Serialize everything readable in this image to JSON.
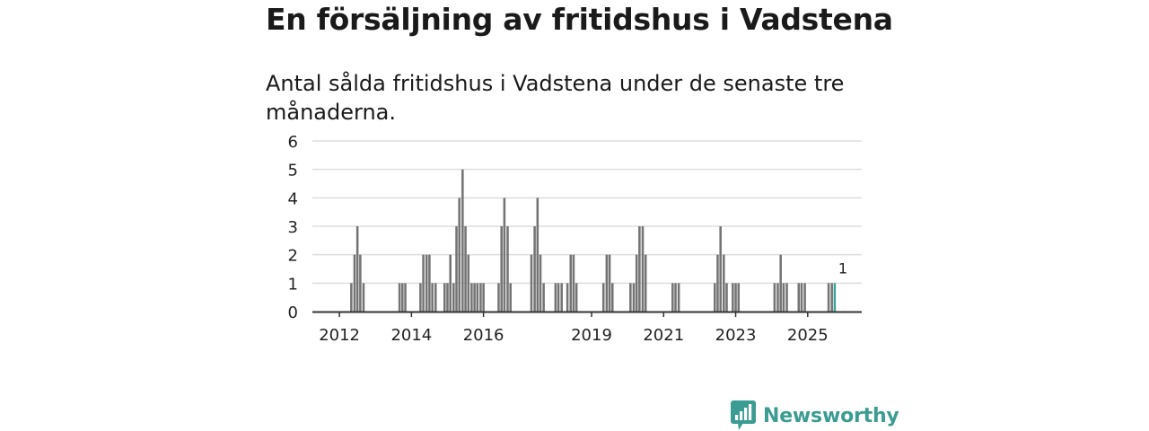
{
  "header": {
    "title": "En försäljning av fritidshus i Vadstena",
    "subtitle": "Antal sålda fritidshus i Vadstena under de senaste tre månaderna."
  },
  "brand": {
    "name": "Newsworthy",
    "icon": "newsworthy-logo-icon",
    "color": "#3a9c92"
  },
  "colors": {
    "bar": "#747474",
    "highlight": "#3aa59a",
    "grid": "#dddddd",
    "axis": "#333333",
    "text": "#222222"
  },
  "chart_data": {
    "type": "bar",
    "title": "Antal sålda fritidshus i Vadstena under de senaste tre månaderna.",
    "xlabel": "",
    "ylabel": "",
    "ylim": [
      0,
      6
    ],
    "xlim": [
      2011.5,
      2026.75
    ],
    "yticks": [
      "0",
      "1",
      "2",
      "3",
      "4",
      "5",
      "6"
    ],
    "xticks": [
      {
        "label": "2012",
        "value": 2012.25
      },
      {
        "label": "2014",
        "value": 2014.25
      },
      {
        "label": "2016",
        "value": 2016.25
      },
      {
        "label": "2019",
        "value": 2019.25
      },
      {
        "label": "2021",
        "value": 2021.25
      },
      {
        "label": "2023",
        "value": 2023.25
      },
      {
        "label": "2025",
        "value": 2025.25
      }
    ],
    "bar_width_years": 0.0833,
    "annotation": {
      "label": "1",
      "x": 2026.25
    },
    "bars": [
      {
        "x": 2012.58,
        "value": 1
      },
      {
        "x": 2012.67,
        "value": 2
      },
      {
        "x": 2012.75,
        "value": 3
      },
      {
        "x": 2012.83,
        "value": 2
      },
      {
        "x": 2012.92,
        "value": 1
      },
      {
        "x": 2013.92,
        "value": 1
      },
      {
        "x": 2014.0,
        "value": 1
      },
      {
        "x": 2014.08,
        "value": 1
      },
      {
        "x": 2014.5,
        "value": 1
      },
      {
        "x": 2014.58,
        "value": 2
      },
      {
        "x": 2014.67,
        "value": 2
      },
      {
        "x": 2014.75,
        "value": 2
      },
      {
        "x": 2014.83,
        "value": 1
      },
      {
        "x": 2014.92,
        "value": 1
      },
      {
        "x": 2015.17,
        "value": 1
      },
      {
        "x": 2015.25,
        "value": 1
      },
      {
        "x": 2015.33,
        "value": 2
      },
      {
        "x": 2015.42,
        "value": 1
      },
      {
        "x": 2015.5,
        "value": 3
      },
      {
        "x": 2015.58,
        "value": 4
      },
      {
        "x": 2015.67,
        "value": 5
      },
      {
        "x": 2015.75,
        "value": 3
      },
      {
        "x": 2015.83,
        "value": 2
      },
      {
        "x": 2015.92,
        "value": 1
      },
      {
        "x": 2016.0,
        "value": 1
      },
      {
        "x": 2016.08,
        "value": 1
      },
      {
        "x": 2016.17,
        "value": 1
      },
      {
        "x": 2016.25,
        "value": 1
      },
      {
        "x": 2016.67,
        "value": 1
      },
      {
        "x": 2016.75,
        "value": 3
      },
      {
        "x": 2016.83,
        "value": 4
      },
      {
        "x": 2016.92,
        "value": 3
      },
      {
        "x": 2017.0,
        "value": 1
      },
      {
        "x": 2017.58,
        "value": 2
      },
      {
        "x": 2017.67,
        "value": 3
      },
      {
        "x": 2017.75,
        "value": 4
      },
      {
        "x": 2017.83,
        "value": 2
      },
      {
        "x": 2017.92,
        "value": 1
      },
      {
        "x": 2018.25,
        "value": 1
      },
      {
        "x": 2018.33,
        "value": 1
      },
      {
        "x": 2018.42,
        "value": 1
      },
      {
        "x": 2018.58,
        "value": 1
      },
      {
        "x": 2018.67,
        "value": 2
      },
      {
        "x": 2018.75,
        "value": 2
      },
      {
        "x": 2018.83,
        "value": 1
      },
      {
        "x": 2019.58,
        "value": 1
      },
      {
        "x": 2019.67,
        "value": 2
      },
      {
        "x": 2019.75,
        "value": 2
      },
      {
        "x": 2019.83,
        "value": 1
      },
      {
        "x": 2020.33,
        "value": 1
      },
      {
        "x": 2020.42,
        "value": 1
      },
      {
        "x": 2020.5,
        "value": 2
      },
      {
        "x": 2020.58,
        "value": 3
      },
      {
        "x": 2020.67,
        "value": 3
      },
      {
        "x": 2020.75,
        "value": 2
      },
      {
        "x": 2021.5,
        "value": 1
      },
      {
        "x": 2021.58,
        "value": 1
      },
      {
        "x": 2021.67,
        "value": 1
      },
      {
        "x": 2022.67,
        "value": 1
      },
      {
        "x": 2022.75,
        "value": 2
      },
      {
        "x": 2022.83,
        "value": 3
      },
      {
        "x": 2022.92,
        "value": 2
      },
      {
        "x": 2023.0,
        "value": 1
      },
      {
        "x": 2023.17,
        "value": 1
      },
      {
        "x": 2023.25,
        "value": 1
      },
      {
        "x": 2023.33,
        "value": 1
      },
      {
        "x": 2024.33,
        "value": 1
      },
      {
        "x": 2024.42,
        "value": 1
      },
      {
        "x": 2024.5,
        "value": 2
      },
      {
        "x": 2024.58,
        "value": 1
      },
      {
        "x": 2024.67,
        "value": 1
      },
      {
        "x": 2025.0,
        "value": 1
      },
      {
        "x": 2025.08,
        "value": 1
      },
      {
        "x": 2025.17,
        "value": 1
      },
      {
        "x": 2025.83,
        "value": 1
      },
      {
        "x": 2025.92,
        "value": 1
      },
      {
        "x": 2026.0,
        "value": 1,
        "highlight": true
      }
    ]
  }
}
